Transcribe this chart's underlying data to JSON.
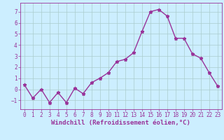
{
  "x": [
    0,
    1,
    2,
    3,
    4,
    5,
    6,
    7,
    8,
    9,
    10,
    11,
    12,
    13,
    14,
    15,
    16,
    17,
    18,
    19,
    20,
    21,
    22,
    23
  ],
  "y": [
    0.4,
    -0.8,
    0.0,
    -1.2,
    -0.3,
    -1.2,
    0.1,
    -0.4,
    0.6,
    1.0,
    1.5,
    2.5,
    2.7,
    3.3,
    5.2,
    7.0,
    7.2,
    6.6,
    4.6,
    4.6,
    3.2,
    2.8,
    1.5,
    0.3
  ],
  "line_color": "#993399",
  "marker": "*",
  "marker_size": 3.5,
  "bg_color": "#cceeff",
  "grid_color": "#aacccc",
  "xlabel": "Windchill (Refroidissement éolien,°C)",
  "ylim": [
    -1.8,
    7.8
  ],
  "xlim": [
    -0.5,
    23.5
  ],
  "yticks": [
    -1,
    0,
    1,
    2,
    3,
    4,
    5,
    6,
    7
  ],
  "xticks": [
    0,
    1,
    2,
    3,
    4,
    5,
    6,
    7,
    8,
    9,
    10,
    11,
    12,
    13,
    14,
    15,
    16,
    17,
    18,
    19,
    20,
    21,
    22,
    23
  ],
  "xlabel_color": "#993399",
  "tick_color": "#993399",
  "tick_fontsize": 5.5,
  "xlabel_fontsize": 6.5
}
